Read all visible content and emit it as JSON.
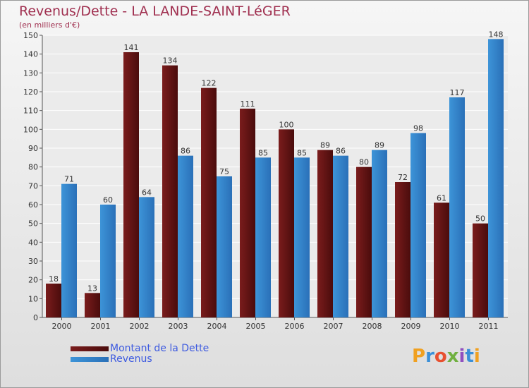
{
  "chart_data": {
    "type": "bar",
    "title": "Revenus/Dette - LA LANDE-SAINT-LéGER",
    "subtitle": "(en milliers d'€)",
    "categories": [
      "2000",
      "2001",
      "2002",
      "2003",
      "2004",
      "2005",
      "2006",
      "2007",
      "2008",
      "2009",
      "2010",
      "2011"
    ],
    "series": [
      {
        "name": "Montant de la Dette",
        "color": "#7a1c1c",
        "values": [
          18,
          13,
          141,
          134,
          122,
          111,
          100,
          89,
          80,
          72,
          61,
          50
        ]
      },
      {
        "name": "Revenus",
        "color": "#3d94d8",
        "values": [
          71,
          60,
          64,
          86,
          75,
          85,
          85,
          86,
          89,
          98,
          117,
          148
        ]
      }
    ],
    "ylim": [
      0,
      150
    ],
    "yticks": [
      0,
      10,
      20,
      30,
      40,
      50,
      60,
      70,
      80,
      90,
      100,
      110,
      120,
      130,
      140,
      150
    ],
    "grid": true,
    "data_labels": true,
    "legend_position": "bottom-left"
  },
  "logo_text": "Proxiti"
}
